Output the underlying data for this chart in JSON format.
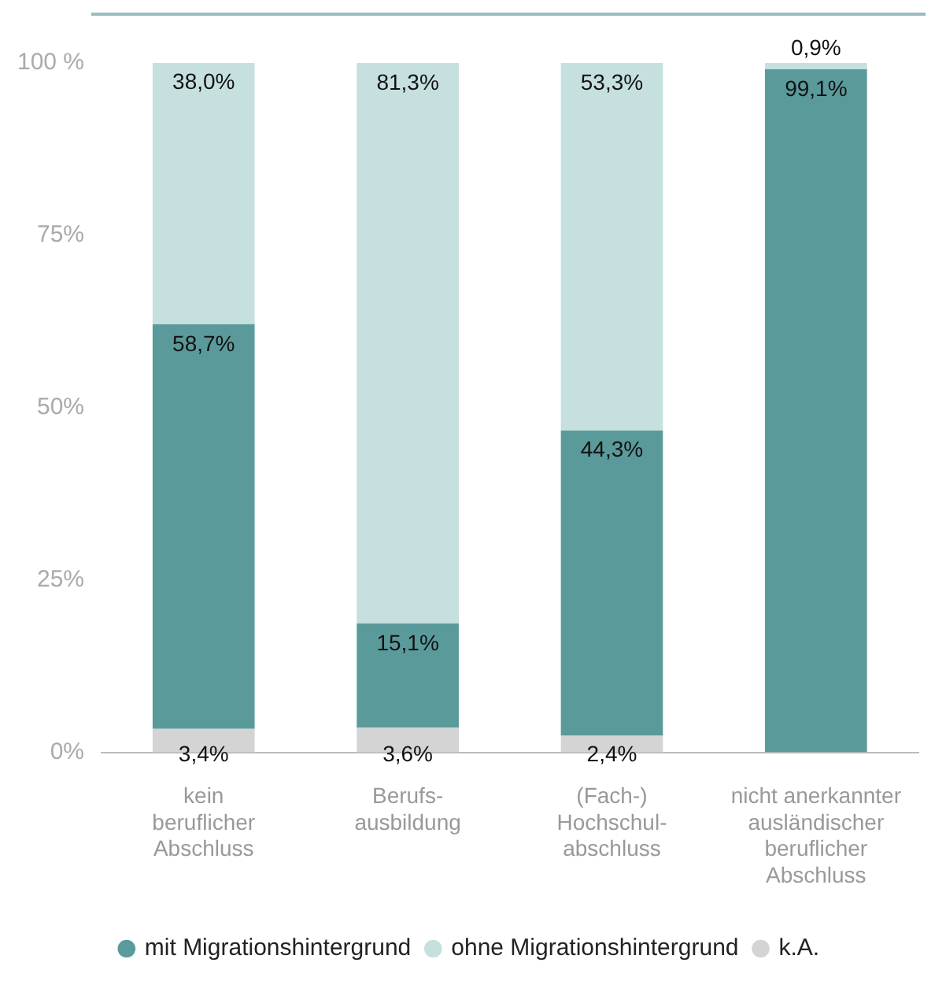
{
  "chart_data": {
    "type": "bar",
    "stacked": true,
    "categories": [
      "kein\nberuflicher\nAbschluss",
      "Berufs-\nausbildung",
      "(Fach-)\nHochschul-\nabschluss",
      "nicht anerkannter\nausländischer\nberuflicher\nAbschluss"
    ],
    "series": [
      {
        "name": "k.A.",
        "color": "#d4d4d4",
        "values": [
          3.4,
          3.6,
          2.4,
          null
        ],
        "value_labels": [
          "3,4%",
          "3,6%",
          "2,4%",
          null
        ]
      },
      {
        "name": "mit Migrationshintergrund",
        "color": "#5b9a9b",
        "values": [
          58.7,
          15.1,
          44.3,
          99.1
        ],
        "value_labels": [
          "58,7%",
          "15,1%",
          "44,3%",
          "99,1%"
        ]
      },
      {
        "name": "ohne Migrationshintergrund",
        "color": "#c6e0df",
        "values": [
          38.0,
          81.3,
          53.3,
          0.9
        ],
        "value_labels": [
          "38,0%",
          "81,3%",
          "53,3%",
          "0,9%"
        ]
      }
    ],
    "ylim": [
      0,
      100
    ],
    "yticks": [
      {
        "value": 0,
        "label": "0%"
      },
      {
        "value": 25,
        "label": "25%"
      },
      {
        "value": 50,
        "label": "50%"
      },
      {
        "value": 75,
        "label": "75%"
      },
      {
        "value": 100,
        "label": "100 %"
      }
    ],
    "grid": false,
    "legend": "bottom",
    "marker": "circle"
  }
}
